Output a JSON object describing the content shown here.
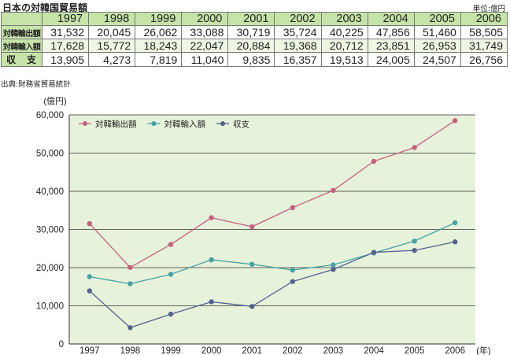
{
  "header": {
    "title": "日本の対韓国貿易額",
    "unit": "単位:億円"
  },
  "table": {
    "years": [
      "1997",
      "1998",
      "1999",
      "2000",
      "2001",
      "2002",
      "2003",
      "2004",
      "2005",
      "2006"
    ],
    "rows": [
      {
        "label": "対韓輸出額",
        "values": [
          "31,532",
          "20,045",
          "26,062",
          "33,088",
          "30,719",
          "35,724",
          "40,225",
          "47,856",
          "51,460",
          "58,505"
        ]
      },
      {
        "label": "対韓輸入額",
        "values": [
          "17,628",
          "15,772",
          "18,243",
          "22,047",
          "20,884",
          "19,368",
          "20,712",
          "23,851",
          "26,953",
          "31,749"
        ]
      },
      {
        "label": "収支",
        "values": [
          "13,905",
          "4,273",
          "7,819",
          "11,040",
          "9,835",
          "16,357",
          "19,513",
          "24,005",
          "24,507",
          "26,756"
        ]
      }
    ]
  },
  "source": "出典:財務省貿易統計",
  "chart_data": {
    "type": "line",
    "categories": [
      "1997",
      "1998",
      "1999",
      "2000",
      "2001",
      "2002",
      "2003",
      "2004",
      "2005",
      "2006"
    ],
    "series": [
      {
        "name": "対韓輸出額",
        "color": "#c4607e",
        "values": [
          31532,
          20045,
          26062,
          33088,
          30719,
          35724,
          40225,
          47856,
          51460,
          58505
        ]
      },
      {
        "name": "対韓輸入額",
        "color": "#45a2a4",
        "values": [
          17628,
          15772,
          18243,
          22047,
          20884,
          19368,
          20712,
          23851,
          26953,
          31749
        ]
      },
      {
        "name": "収支",
        "color": "#55628f",
        "values": [
          13905,
          4273,
          7819,
          11040,
          9835,
          16357,
          19513,
          24005,
          24507,
          26756
        ]
      }
    ],
    "ylim": [
      0,
      60000
    ],
    "yticks": [
      0,
      10000,
      20000,
      30000,
      40000,
      50000,
      60000
    ],
    "ytick_labels": [
      "0",
      "10,000",
      "20,000",
      "30,000",
      "40,000",
      "50,000",
      "60,000"
    ],
    "ylabel": "(億円)",
    "xlabel": "(年)",
    "grid": true,
    "legend": "top-left",
    "plot_background": "#e6f2da"
  }
}
